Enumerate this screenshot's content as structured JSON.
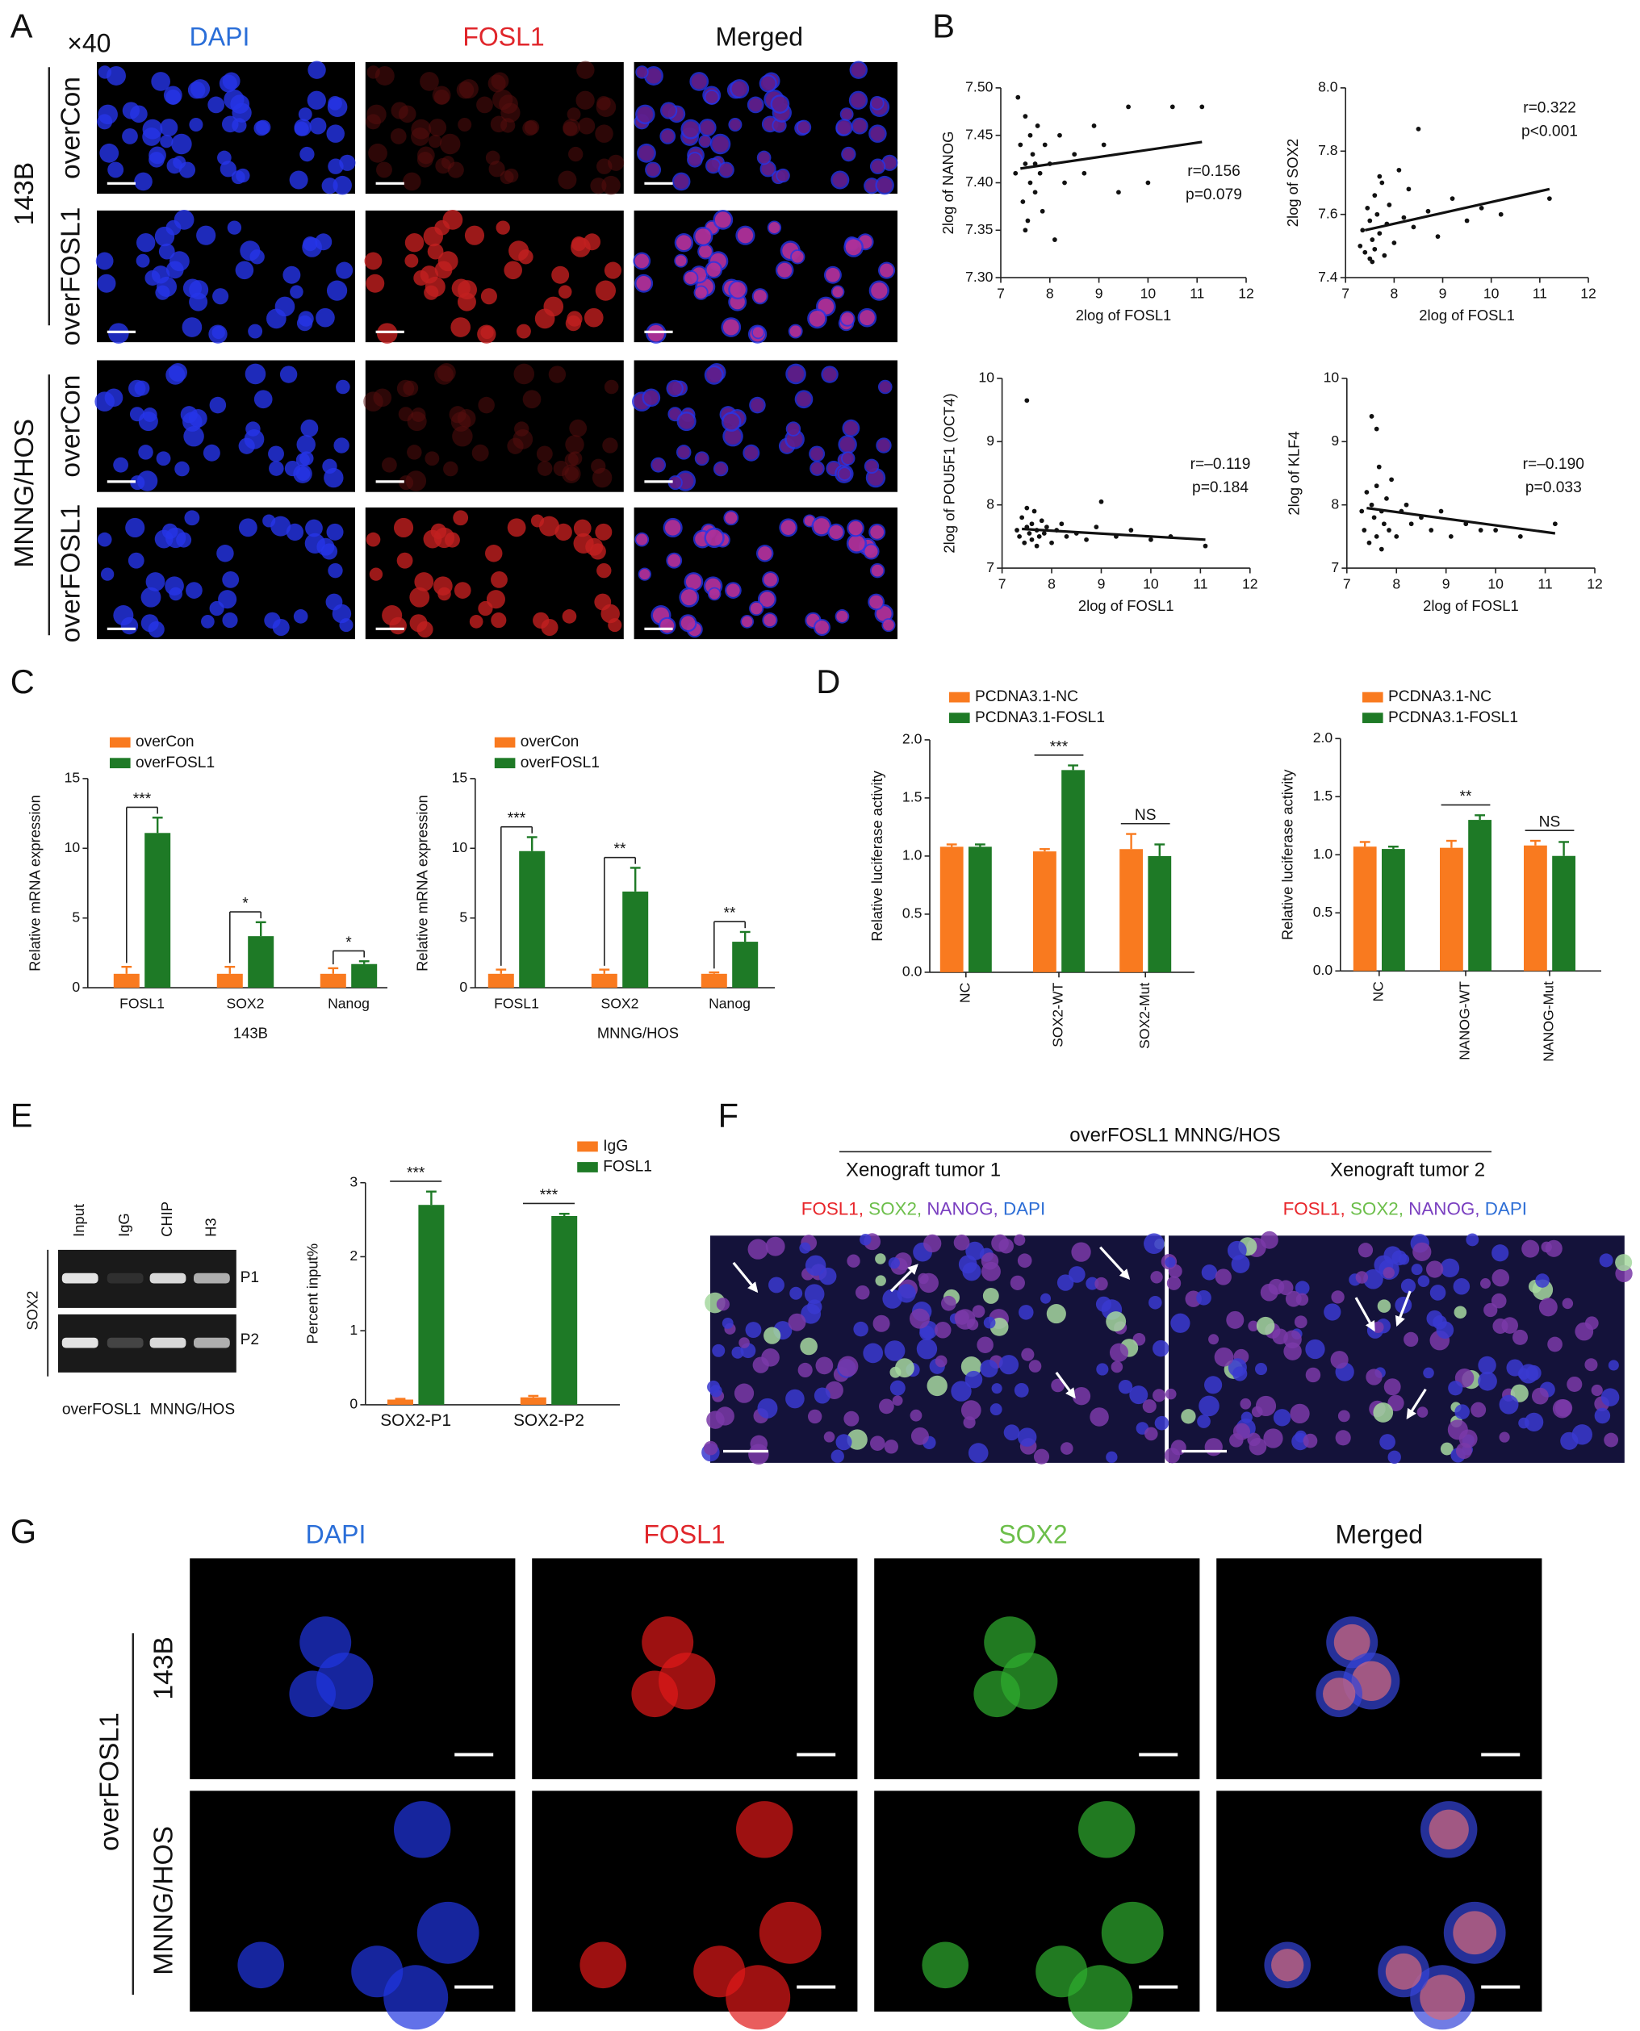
{
  "panel_labels": [
    "A",
    "B",
    "C",
    "D",
    "E",
    "F",
    "G"
  ],
  "panel_a": {
    "magnification": "×40",
    "columns": [
      "DAPI",
      "FOSL1",
      "Merged"
    ],
    "groups": [
      {
        "name": "143B",
        "rows": [
          "overCon",
          "overFOSL1"
        ]
      },
      {
        "name": "MNNG/HOS",
        "rows": [
          "overCon",
          "overFOSL1"
        ]
      }
    ]
  },
  "panel_e_gel": {
    "lanes": [
      "Input",
      "IgG",
      "CHIP",
      "H3"
    ],
    "target": "SOX2",
    "bands": [
      "P1",
      "P2"
    ],
    "caption": "overFOSL1  MNNG/HOS"
  },
  "panel_f": {
    "title": "overFOSL1 MNNG/HOS",
    "tumors": [
      "Xenograft tumor 1",
      "Xenograft tumor 2"
    ],
    "stains": [
      {
        "text": "FOSL1,",
        "color": "#e8262b"
      },
      {
        "text": "SOX2,",
        "color": "#6dbf4b"
      },
      {
        "text": "NANOG,",
        "color": "#7a3fc0"
      },
      {
        "text": "DAPI",
        "color": "#2f6fd6"
      }
    ]
  },
  "panel_g": {
    "columns": [
      "DAPI",
      "FOSL1",
      "SOX2",
      "Merged"
    ],
    "group": "overFOSL1",
    "rows": [
      "143B",
      "MNNG/HOS"
    ]
  },
  "chart_data": [
    {
      "type": "scatter",
      "x_label": "2log of FOSL1",
      "y_label": "2log of NANOG",
      "annotations": [
        "r=0.156",
        "p=0.079"
      ],
      "x": [
        7.3,
        7.4,
        7.45,
        7.5,
        7.5,
        7.55,
        7.6,
        7.6,
        7.65,
        7.7,
        7.75,
        7.8,
        7.85,
        7.9,
        8.0,
        8.1,
        8.2,
        8.3,
        8.5,
        8.7,
        8.9,
        9.1,
        9.4,
        9.6,
        10.0,
        10.5,
        11.1,
        7.35,
        7.5,
        7.7
      ],
      "y": [
        7.41,
        7.44,
        7.38,
        7.47,
        7.42,
        7.36,
        7.45,
        7.4,
        7.43,
        7.39,
        7.46,
        7.41,
        7.37,
        7.44,
        7.42,
        7.34,
        7.45,
        7.4,
        7.43,
        7.41,
        7.46,
        7.44,
        7.39,
        7.48,
        7.4,
        7.48,
        7.48,
        7.49,
        7.35,
        7.42
      ],
      "trend": {
        "x": [
          7.4,
          11.1
        ],
        "y": [
          7.415,
          7.443
        ]
      },
      "xlim": [
        7,
        12
      ],
      "ylim": [
        7.3,
        7.5
      ],
      "xticks": [
        7,
        8,
        9,
        10,
        11,
        12
      ],
      "yticks": [
        {
          "value": 7.3,
          "label": "7.30"
        },
        7.35,
        {
          "value": 7.4,
          "label": "7.40"
        },
        7.45,
        {
          "value": 7.5,
          "label": "7.50"
        }
      ]
    },
    {
      "type": "scatter",
      "x_label": "2log of FOSL1",
      "y_label": "2log of SOX2",
      "annotations": [
        "r=0.322",
        "p<0.001"
      ],
      "x": [
        7.3,
        7.35,
        7.4,
        7.45,
        7.5,
        7.5,
        7.55,
        7.6,
        7.6,
        7.65,
        7.7,
        7.75,
        7.8,
        7.85,
        7.9,
        8.0,
        8.1,
        8.2,
        8.3,
        8.4,
        8.5,
        8.7,
        8.9,
        9.2,
        9.5,
        9.8,
        10.2,
        11.2,
        7.55,
        7.7
      ],
      "y": [
        7.5,
        7.55,
        7.48,
        7.62,
        7.46,
        7.58,
        7.52,
        7.66,
        7.49,
        7.6,
        7.54,
        7.7,
        7.47,
        7.57,
        7.63,
        7.51,
        7.74,
        7.59,
        7.68,
        7.56,
        7.87,
        7.61,
        7.53,
        7.65,
        7.58,
        7.62,
        7.6,
        7.65,
        7.45,
        7.72
      ],
      "trend": {
        "x": [
          7.4,
          11.2
        ],
        "y": [
          7.55,
          7.68
        ]
      },
      "xlim": [
        7,
        12
      ],
      "ylim": [
        7.4,
        8.0
      ],
      "xticks": [
        7,
        8,
        9,
        10,
        11,
        12
      ],
      "yticks": [
        7.4,
        7.6,
        7.8,
        {
          "value": 8,
          "label": "8.0"
        }
      ]
    },
    {
      "type": "scatter",
      "x_label": "2log of FOSL1",
      "y_label": "2log of POU5F1 (OCT4)",
      "annotations": [
        "r=–0.119",
        "p=0.184"
      ],
      "x": [
        7.3,
        7.35,
        7.4,
        7.45,
        7.5,
        7.5,
        7.55,
        7.6,
        7.6,
        7.65,
        7.7,
        7.75,
        7.8,
        7.85,
        7.9,
        8.0,
        8.1,
        8.2,
        8.3,
        8.5,
        8.7,
        8.9,
        9.0,
        9.3,
        9.6,
        10.0,
        10.4,
        11.1,
        7.5,
        7.7
      ],
      "y": [
        7.6,
        7.5,
        7.8,
        7.4,
        7.65,
        9.65,
        7.55,
        7.7,
        7.45,
        7.9,
        7.6,
        7.5,
        7.75,
        7.55,
        7.65,
        7.4,
        7.6,
        7.7,
        7.5,
        7.55,
        7.45,
        7.65,
        8.05,
        7.5,
        7.6,
        7.45,
        7.5,
        7.35,
        7.95,
        7.35
      ],
      "trend": {
        "x": [
          7.4,
          11.1
        ],
        "y": [
          7.62,
          7.45
        ]
      },
      "xlim": [
        7,
        12
      ],
      "ylim": [
        7,
        10
      ],
      "xticks": [
        7,
        8,
        9,
        10,
        11,
        12
      ],
      "yticks": [
        7,
        8,
        9,
        10
      ]
    },
    {
      "type": "scatter",
      "x_label": "2log of FOSL1",
      "y_label": "2log of KLF4",
      "annotations": [
        "r=–0.190",
        "p=0.033"
      ],
      "x": [
        7.3,
        7.35,
        7.4,
        7.45,
        7.5,
        7.5,
        7.55,
        7.6,
        7.6,
        7.65,
        7.7,
        7.75,
        7.8,
        7.85,
        7.9,
        8.0,
        8.1,
        8.2,
        8.3,
        8.5,
        8.7,
        8.9,
        9.1,
        9.4,
        9.7,
        10.0,
        10.5,
        11.2,
        7.6,
        7.7
      ],
      "y": [
        7.9,
        7.6,
        8.2,
        7.4,
        8.0,
        9.4,
        7.8,
        8.3,
        7.5,
        8.6,
        7.9,
        7.7,
        8.1,
        7.6,
        8.4,
        7.5,
        7.9,
        8.0,
        7.7,
        7.8,
        7.6,
        7.9,
        7.5,
        7.7,
        7.6,
        7.6,
        7.5,
        7.7,
        9.2,
        7.3
      ],
      "trend": {
        "x": [
          7.4,
          11.2
        ],
        "y": [
          7.95,
          7.55
        ]
      },
      "xlim": [
        7,
        12
      ],
      "ylim": [
        7,
        10
      ],
      "xticks": [
        7,
        8,
        9,
        10,
        11,
        12
      ],
      "yticks": [
        7,
        8,
        9,
        10
      ]
    },
    {
      "type": "bar",
      "x_label": "143B",
      "y_label": "Relative mRNA expression",
      "categories": [
        "FOSL1",
        "SOX2",
        "Nanog"
      ],
      "series": [
        {
          "name": "overCon",
          "color": "#f97a1f",
          "values": [
            1.0,
            1.0,
            1.0
          ],
          "errors": [
            0.5,
            0.5,
            0.4
          ]
        },
        {
          "name": "overFOSL1",
          "color": "#1e7a26",
          "values": [
            11.1,
            3.7,
            1.7
          ],
          "errors": [
            1.1,
            1.0,
            0.2
          ]
        }
      ],
      "significance": [
        "***",
        "*",
        "*"
      ],
      "ylim": [
        0,
        15
      ],
      "yticks": [
        0,
        5,
        10,
        15
      ]
    },
    {
      "type": "bar",
      "x_label": "MNNG/HOS",
      "y_label": "Relative mRNA expression",
      "categories": [
        "FOSL1",
        "SOX2",
        "Nanog"
      ],
      "series": [
        {
          "name": "overCon",
          "color": "#f97a1f",
          "values": [
            1.0,
            1.0,
            1.0
          ],
          "errors": [
            0.3,
            0.3,
            0.1
          ]
        },
        {
          "name": "overFOSL1",
          "color": "#1e7a26",
          "values": [
            9.8,
            6.9,
            3.3
          ],
          "errors": [
            1.0,
            1.7,
            0.7
          ]
        }
      ],
      "significance": [
        "***",
        "**",
        "**"
      ],
      "ylim": [
        0,
        15
      ],
      "yticks": [
        0,
        5,
        10,
        15
      ]
    },
    {
      "type": "bar",
      "y_label": "Relative luciferase activity",
      "categories": [
        "NC",
        "SOX2-WT",
        "SOX2-Mut"
      ],
      "series": [
        {
          "name": "PCDNA3.1-NC",
          "color": "#f97a1f",
          "values": [
            1.08,
            1.04,
            1.06
          ],
          "errors": [
            0.02,
            0.02,
            0.13
          ]
        },
        {
          "name": "PCDNA3.1-FOSL1",
          "color": "#1e7a26",
          "values": [
            1.08,
            1.74,
            1.0
          ],
          "errors": [
            0.02,
            0.04,
            0.1
          ]
        }
      ],
      "significance": [
        null,
        "***",
        "NS"
      ],
      "ylim": [
        0,
        2
      ],
      "yticks": [
        {
          "value": 0,
          "label": "0.0"
        },
        0.5,
        {
          "value": 1,
          "label": "1.0"
        },
        1.5,
        {
          "value": 2,
          "label": "2.0"
        }
      ]
    },
    {
      "type": "bar",
      "y_label": "Relative luciferase activity",
      "categories": [
        "NC",
        "NANOG-WT",
        "NANOG-Mut"
      ],
      "series": [
        {
          "name": "PCDNA3.1-NC",
          "color": "#f97a1f",
          "values": [
            1.07,
            1.06,
            1.08
          ],
          "errors": [
            0.04,
            0.06,
            0.04
          ]
        },
        {
          "name": "PCDNA3.1-FOSL1",
          "color": "#1e7a26",
          "values": [
            1.05,
            1.3,
            0.99
          ],
          "errors": [
            0.02,
            0.04,
            0.12
          ]
        }
      ],
      "significance": [
        null,
        "**",
        "NS"
      ],
      "ylim": [
        0,
        2
      ],
      "yticks": [
        {
          "value": 0,
          "label": "0.0"
        },
        0.5,
        {
          "value": 1,
          "label": "1.0"
        },
        1.5,
        {
          "value": 2,
          "label": "2.0"
        }
      ]
    },
    {
      "type": "bar",
      "y_label": "Percent input%",
      "categories": [
        "SOX2-P1",
        "SOX2-P2"
      ],
      "series": [
        {
          "name": "IgG",
          "color": "#f97a1f",
          "values": [
            0.07,
            0.1
          ],
          "errors": [
            0.01,
            0.02
          ]
        },
        {
          "name": "FOSL1",
          "color": "#1e7a26",
          "values": [
            2.7,
            2.55
          ],
          "errors": [
            0.18,
            0.03
          ]
        }
      ],
      "significance": [
        "***",
        "***"
      ],
      "ylim": [
        0,
        3
      ],
      "yticks": [
        0,
        1,
        2,
        3
      ]
    }
  ]
}
